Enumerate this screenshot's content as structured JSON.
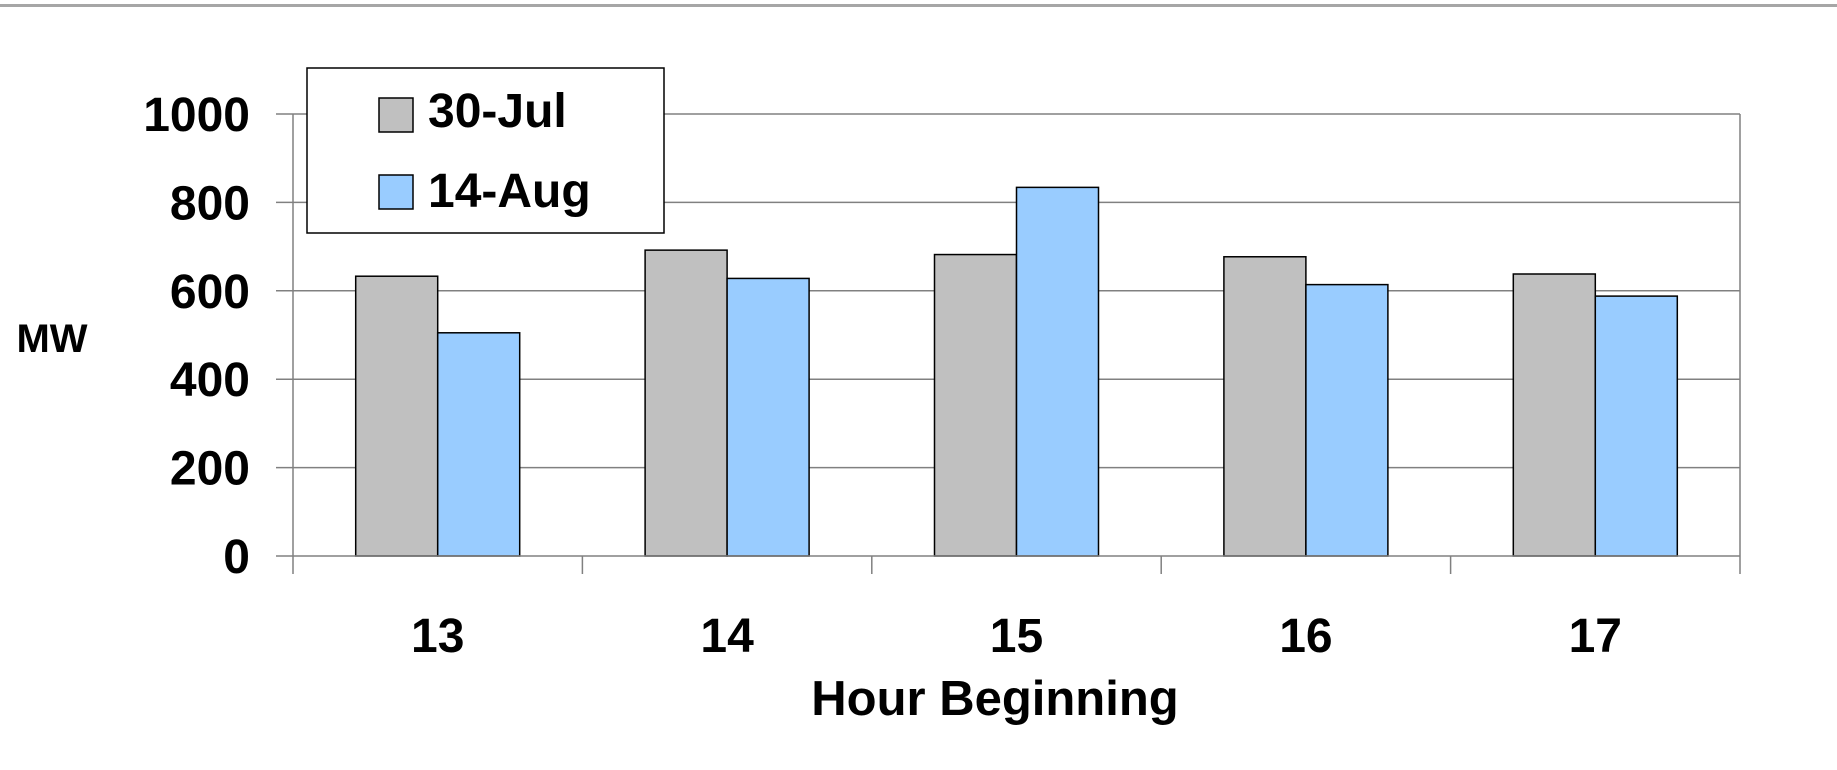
{
  "chart_data": {
    "type": "bar",
    "title": "",
    "xlabel": "Hour Beginning",
    "ylabel": "MW",
    "categories": [
      "13",
      "14",
      "15",
      "16",
      "17"
    ],
    "series": [
      {
        "name": "30-Jul",
        "values": [
          633,
          692,
          682,
          677,
          638
        ],
        "color": "#c0c0c0"
      },
      {
        "name": "14-Aug",
        "values": [
          505,
          628,
          834,
          614,
          588
        ],
        "color": "#99ccff"
      }
    ],
    "ylim": [
      0,
      1000
    ],
    "yticks": [
      0,
      200,
      400,
      600,
      800,
      1000
    ],
    "grid": true,
    "legend": "top-left"
  }
}
